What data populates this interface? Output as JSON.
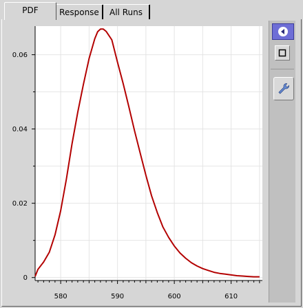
{
  "tabs": [
    {
      "label": "PDF",
      "active": true
    },
    {
      "label": "Response",
      "active": false
    },
    {
      "label": "All Runs",
      "active": false
    }
  ],
  "toolbar": {
    "buttons": [
      {
        "icon": "arrow-left-circle-icon",
        "selected": true
      },
      {
        "icon": "square-outline-icon",
        "selected": false
      },
      {
        "icon": "wrench-icon",
        "selected": false
      }
    ]
  },
  "chart_data": {
    "type": "line",
    "title": "",
    "xlabel": "",
    "ylabel": "",
    "xlim": [
      575.5,
      615.5
    ],
    "ylim": [
      -0.0008,
      0.0677
    ],
    "x_ticks": [
      580,
      590,
      600,
      610
    ],
    "y_ticks": [
      0,
      0.02,
      0.04,
      0.06
    ],
    "x_tick_labels": [
      "580",
      "590",
      "600",
      "610"
    ],
    "y_tick_labels": [
      "0",
      "0.02",
      "0.04",
      "0.06"
    ],
    "grid": true,
    "series": [
      {
        "name": "PDF",
        "color": "#b30000",
        "x": [
          575.5,
          576,
          577,
          578,
          579,
          580,
          581,
          582,
          583,
          584,
          585,
          586,
          586.5,
          587,
          587.5,
          588,
          589,
          590,
          591,
          592,
          593,
          594,
          595,
          596,
          597,
          598,
          599,
          600,
          601,
          602,
          603,
          604,
          605,
          606,
          607,
          608,
          609,
          610,
          611,
          612,
          613,
          614,
          615
        ],
        "y": [
          0.0003,
          0.0022,
          0.0042,
          0.0068,
          0.0115,
          0.018,
          0.0265,
          0.036,
          0.0445,
          0.052,
          0.059,
          0.0643,
          0.0662,
          0.0669,
          0.0669,
          0.0663,
          0.064,
          0.058,
          0.0522,
          0.046,
          0.0395,
          0.0335,
          0.0275,
          0.022,
          0.0175,
          0.0136,
          0.0108,
          0.0085,
          0.0066,
          0.0052,
          0.004,
          0.0031,
          0.0024,
          0.0019,
          0.0014,
          0.0011,
          0.0009,
          0.0007,
          0.0005,
          0.0004,
          0.0003,
          0.0002,
          0.0002
        ]
      }
    ]
  }
}
